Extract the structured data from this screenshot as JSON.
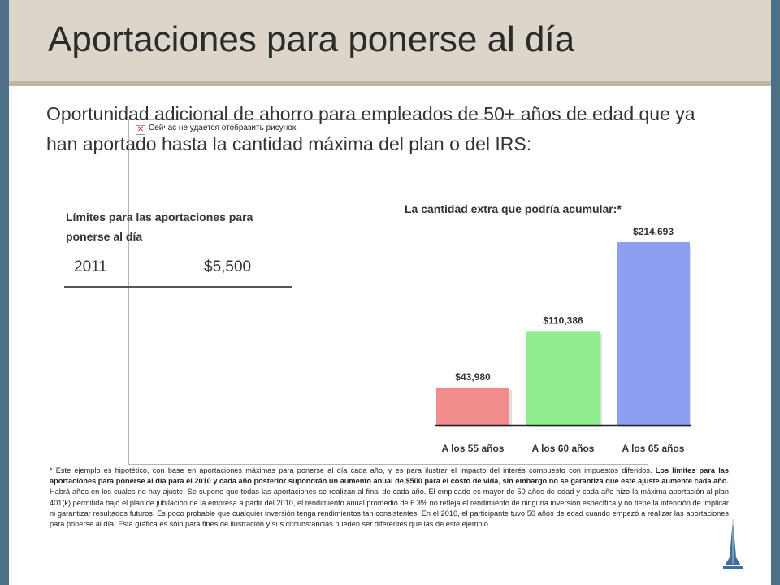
{
  "slide": {
    "title": "Aportaciones para ponerse al día",
    "subtitle": "Oportunidad adicional de ahorro para empleados de 50+ años de edad que ya han aportado hasta la cantidad máxima del plan o del IRS:",
    "image_placeholder_text": "Сейчас не удается отобразить рисунок.",
    "limits_heading": "Límites para las aportaciones para ponerse al día",
    "limits_row": {
      "year": "2011",
      "amount": "$5,500"
    },
    "footnote_intro": "* Este ejemplo es hipotético, con base en aportaciones máximas para ponerse al día cada año, y es para ilustrar el impacto del interés compuesto con impuestos diferidos.",
    "footnote_bold": "Los límites para las aportaciones para ponerse al día para el 2010 y cada año posterior supondrán un aumento anual de $500 para el costo de vida, sin embargo no se garantiza que este ajuste aumente cada año.",
    "footnote_rest": "Habrá años en los cuales no hay ajuste. Se supone que todas las aportaciones se realizan al final de cada año. El empleado es mayor de 50 años de edad y cada año hizo la máxima aportación al plan 401(k) permitida bajo el plan de jubilación de la empresa a partir del 2010, el rendimiento anual promedio de 6.3% no refleja el rendimiento de ninguna inversión específica y no tiene la intención de implicar ni garantizar resultados futuros. Es poco probable que cualquier inversión tenga rendimientos tan consistentes. En el 2010, el participante tuvo 50 años de edad cuando empezó a realizar las aportaciones para ponerse al día. Esta gráfica es sólo para fines de ilustración y sus circunstancias pueden ser diferentes que las de este ejemplo."
  },
  "colors": {
    "sidebar": "#4e6f88",
    "title_band": "#dcd5c9",
    "bar_colors": [
      "#f08c8c",
      "#90ee90",
      "#8c9ff0"
    ]
  },
  "chart_data": {
    "type": "bar",
    "title": "La cantidad extra que podría acumular:*",
    "categories": [
      "A los 55 años",
      "A los 60 años",
      "A los 65 años"
    ],
    "values": [
      43980,
      110386,
      214693
    ],
    "data_labels": [
      "$43,980",
      "$110,386",
      "$214,693"
    ],
    "ylim": [
      0,
      214693
    ],
    "grid": false,
    "axis_visible": false
  }
}
